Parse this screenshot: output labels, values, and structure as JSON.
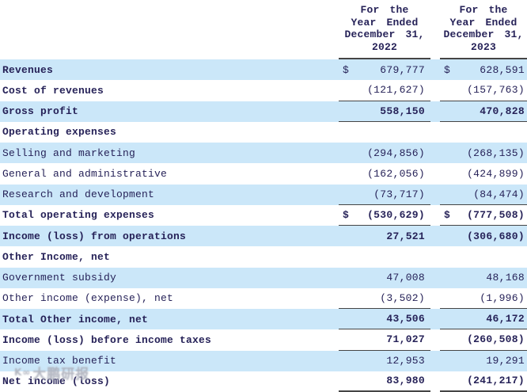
{
  "table": {
    "currency_symbol": "$",
    "columns": [
      {
        "lines": [
          "For the",
          "Year Ended",
          "December 31,",
          "2022"
        ]
      },
      {
        "lines": [
          "For the",
          "Year Ended",
          "December 31,",
          "2023"
        ]
      }
    ],
    "rows": [
      {
        "label": "Revenues",
        "y2022": "679,777",
        "y2023": "628,591",
        "stripe": true,
        "bold": true,
        "value_bold": false,
        "dollar": true,
        "underline": false
      },
      {
        "label": "Cost of revenues",
        "y2022": "(121,627)",
        "y2023": "(157,763)",
        "stripe": false,
        "bold": true,
        "value_bold": false,
        "dollar": false,
        "underline": true
      },
      {
        "label": "Gross profit",
        "y2022": "558,150",
        "y2023": "470,828",
        "stripe": true,
        "bold": true,
        "value_bold": true,
        "dollar": false,
        "underline": true
      },
      {
        "label": "Operating expenses",
        "y2022": "",
        "y2023": "",
        "stripe": false,
        "bold": true,
        "value_bold": false,
        "dollar": false,
        "underline": false
      },
      {
        "label": "Selling and marketing",
        "y2022": "(294,856)",
        "y2023": "(268,135)",
        "stripe": true,
        "bold": false,
        "value_bold": false,
        "dollar": false,
        "underline": false
      },
      {
        "label": "General and administrative",
        "y2022": "(162,056)",
        "y2023": "(424,899)",
        "stripe": false,
        "bold": false,
        "value_bold": false,
        "dollar": false,
        "underline": false
      },
      {
        "label": "Research and development",
        "y2022": "(73,717)",
        "y2023": "(84,474)",
        "stripe": true,
        "bold": false,
        "value_bold": false,
        "dollar": false,
        "underline": true
      },
      {
        "label": "Total operating expenses",
        "y2022": "(530,629)",
        "y2023": "(777,508)",
        "stripe": false,
        "bold": true,
        "value_bold": true,
        "dollar": true,
        "underline": true
      },
      {
        "label": "Income (loss) from operations",
        "y2022": "27,521",
        "y2023": "(306,680)",
        "stripe": true,
        "bold": true,
        "value_bold": true,
        "dollar": false,
        "underline": false
      },
      {
        "label": "Other Income, net",
        "y2022": "",
        "y2023": "",
        "stripe": false,
        "bold": true,
        "value_bold": false,
        "dollar": false,
        "underline": false
      },
      {
        "label": "Government subsidy",
        "y2022": "47,008",
        "y2023": "48,168",
        "stripe": true,
        "bold": false,
        "value_bold": false,
        "dollar": false,
        "underline": false
      },
      {
        "label": "Other income (expense), net",
        "y2022": "(3,502)",
        "y2023": "(1,996)",
        "stripe": false,
        "bold": false,
        "value_bold": false,
        "dollar": false,
        "underline": true
      },
      {
        "label": "Total Other income, net",
        "y2022": "43,506",
        "y2023": "46,172",
        "stripe": true,
        "bold": true,
        "value_bold": true,
        "dollar": false,
        "underline": true
      },
      {
        "label": "Income (loss) before income taxes",
        "y2022": "71,027",
        "y2023": "(260,508)",
        "stripe": false,
        "bold": true,
        "value_bold": true,
        "dollar": false,
        "underline": true
      },
      {
        "label": "Income tax benefit",
        "y2022": "12,953",
        "y2023": "19,291",
        "stripe": true,
        "bold": false,
        "value_bold": false,
        "dollar": false,
        "underline": false
      },
      {
        "label": "Net income (loss)",
        "y2022": "83,980",
        "y2023": "(241,217)",
        "stripe": false,
        "bold": true,
        "value_bold": true,
        "dollar": false,
        "underline": false,
        "bottom_line": true
      }
    ]
  },
  "watermark": {
    "logo": "K∞",
    "text": "大鹏研报"
  },
  "colors": {
    "stripe_blue": "#cbe7f9",
    "text_navy": "#262258",
    "rule_line": "#454545",
    "background": "#ffffff"
  }
}
